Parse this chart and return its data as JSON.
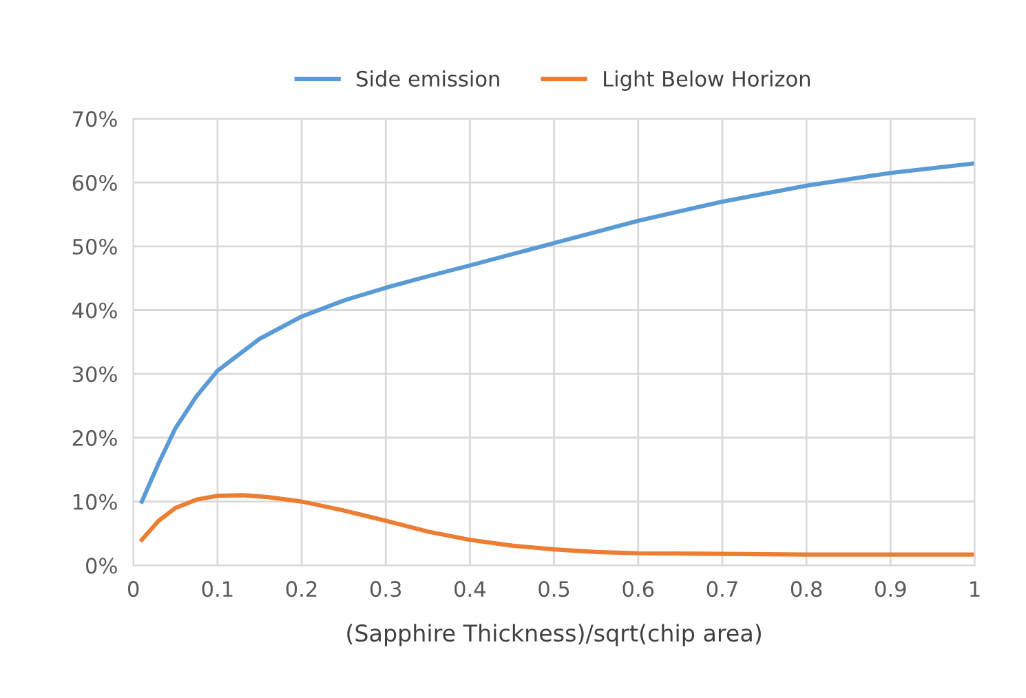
{
  "chart_data": {
    "type": "line",
    "xlabel": "(Sapphire Thickness)/sqrt(chip area)",
    "xlim": [
      0,
      1
    ],
    "xticks": [
      0,
      0.1,
      0.2,
      0.3,
      0.4,
      0.5,
      0.6,
      0.7,
      0.8,
      0.9,
      1
    ],
    "ylim": [
      0,
      70
    ],
    "yticks": [
      {
        "value": 0,
        "label": "0%"
      },
      {
        "value": 10,
        "label": "10%"
      },
      {
        "value": 20,
        "label": "20%"
      },
      {
        "value": 30,
        "label": "30%"
      },
      {
        "value": 40,
        "label": "40%"
      },
      {
        "value": 50,
        "label": "50%"
      },
      {
        "value": 60,
        "label": "60%"
      },
      {
        "value": 70,
        "label": "70%"
      }
    ],
    "grid": true,
    "legend": "top",
    "marker": "none",
    "line_style": "solid",
    "series": [
      {
        "name": "Side emission",
        "color": "#5b9bd5",
        "x": [
          0.01,
          0.03,
          0.05,
          0.075,
          0.1,
          0.15,
          0.2,
          0.25,
          0.3,
          0.35,
          0.4,
          0.5,
          0.6,
          0.7,
          0.8,
          0.9,
          1.0
        ],
        "values": [
          10,
          16,
          21.5,
          26.5,
          30.5,
          35.5,
          39,
          41.5,
          43.5,
          45.3,
          47,
          50.5,
          54,
          57,
          59.5,
          61.5,
          63
        ]
      },
      {
        "name": "Light Below Horizon",
        "color": "#ed7d31",
        "x": [
          0.01,
          0.03,
          0.05,
          0.075,
          0.1,
          0.13,
          0.16,
          0.2,
          0.25,
          0.3,
          0.35,
          0.4,
          0.45,
          0.5,
          0.55,
          0.6,
          0.7,
          0.8,
          1.0
        ],
        "values": [
          4,
          7,
          9,
          10.3,
          10.9,
          11,
          10.7,
          10,
          8.6,
          7,
          5.3,
          4,
          3.1,
          2.5,
          2.1,
          1.9,
          1.8,
          1.7,
          1.7
        ]
      }
    ]
  }
}
